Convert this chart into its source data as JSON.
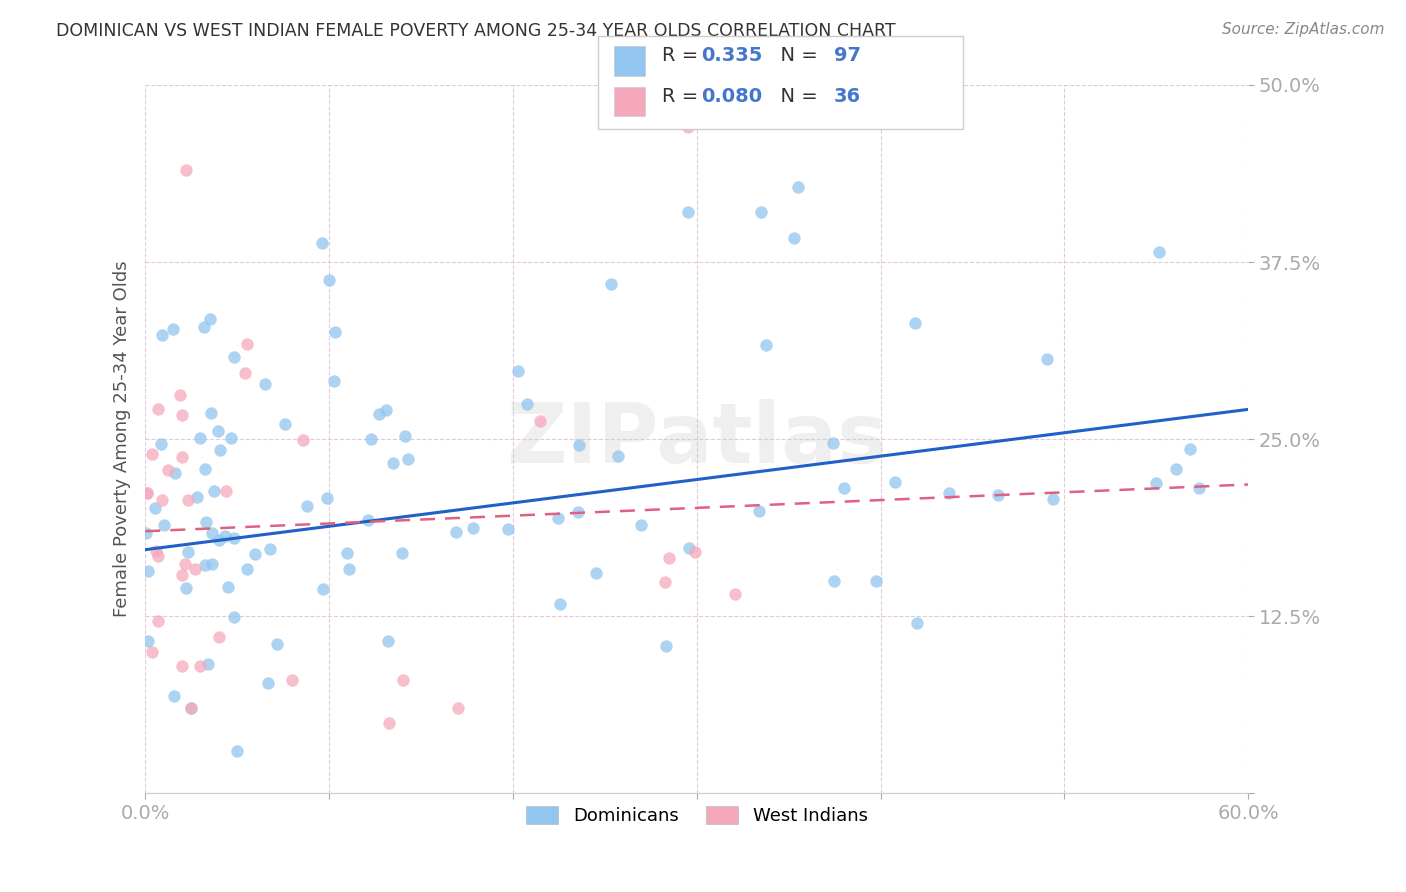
{
  "title": "DOMINICAN VS WEST INDIAN FEMALE POVERTY AMONG 25-34 YEAR OLDS CORRELATION CHART",
  "source": "Source: ZipAtlas.com",
  "ylabel": "Female Poverty Among 25-34 Year Olds",
  "xlim": [
    0.0,
    0.6
  ],
  "ylim": [
    0.0,
    0.5
  ],
  "xtick_vals": [
    0.0,
    0.1,
    0.2,
    0.3,
    0.4,
    0.5,
    0.6
  ],
  "ytick_vals": [
    0.0,
    0.125,
    0.25,
    0.375,
    0.5
  ],
  "xticklabels": [
    "0.0%",
    "",
    "",
    "",
    "",
    "",
    "60.0%"
  ],
  "yticklabels": [
    "",
    "12.5%",
    "25.0%",
    "37.5%",
    "50.0%"
  ],
  "dominican_color": "#92c5f0",
  "west_indian_color": "#f5a8bb",
  "dominican_line_color": "#2060c8",
  "west_indian_line_color": "#e06080",
  "legend_R1": "0.335",
  "legend_N1": "97",
  "legend_R2": "0.080",
  "legend_N2": "36",
  "watermark": "ZIPatlas",
  "title_color": "#333333",
  "source_color": "#888888",
  "ylabel_color": "#555555",
  "tick_label_color": "#4477cc",
  "grid_color": "#ddbbcc",
  "legend_text_black": "#333333",
  "legend_text_blue": "#4477cc"
}
